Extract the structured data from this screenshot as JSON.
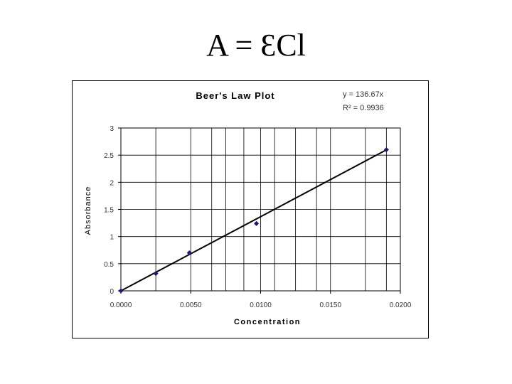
{
  "slide": {
    "title": "A = ƐCl"
  },
  "chart_data": {
    "type": "scatter",
    "title": "Beer's Law Plot",
    "xlabel": "Concentration",
    "ylabel": "Absorbance",
    "xlim": [
      0,
      0.02
    ],
    "ylim": [
      0,
      3
    ],
    "x_ticks": [
      "0.0000",
      "0.0050",
      "0.0100",
      "0.0150",
      "0.0200"
    ],
    "y_ticks": [
      "0",
      "0.5",
      "1",
      "1.5",
      "2",
      "2.5",
      "3"
    ],
    "x_gridlines": [
      0.0025,
      0.005,
      0.0065,
      0.0075,
      0.0088,
      0.01,
      0.011,
      0.0125,
      0.014,
      0.015,
      0.0175,
      0.019
    ],
    "grid": true,
    "series": [
      {
        "points": [
          {
            "x": 0.0,
            "y": 0.0
          },
          {
            "x": 0.0025,
            "y": 0.32
          },
          {
            "x": 0.0049,
            "y": 0.7
          },
          {
            "x": 0.0097,
            "y": 1.24
          },
          {
            "x": 0.019,
            "y": 2.6
          }
        ],
        "marker_color": "#1a1a6e"
      }
    ],
    "trendline": {
      "slope": 136.67,
      "equation": "y = 136.67x",
      "r_squared": "R² = 0.9936",
      "color": "#000000"
    },
    "legend": "none"
  }
}
